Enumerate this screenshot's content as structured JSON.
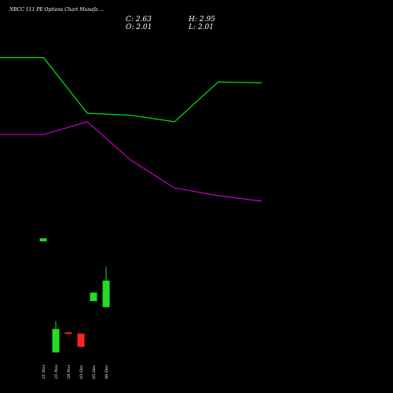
{
  "header": {
    "title": "NBCC 111 PE Options Chart Munafa ...",
    "close_label": "C: 2.63",
    "open_label": "O: 2.01",
    "high_label": "H: 2.95",
    "low_label": "L: 2.01"
  },
  "chart_data": {
    "type": "candlestick",
    "title": "NBCC 111 PE Options Chart Munafa ...",
    "x_tick_labels": [
      "21 Nov",
      "25 Nov",
      "28 Nov",
      "03 Dec",
      "05 Dec",
      "06 Dec"
    ],
    "candles": [
      {
        "date": "21 Nov",
        "open": 3.62,
        "high": 3.62,
        "low": 3.55,
        "close": 3.55,
        "color": "#22dd22"
      },
      {
        "date": "25 Nov",
        "open": 0.95,
        "high": 1.68,
        "low": 0.95,
        "close": 1.5,
        "color": "#22dd22"
      },
      {
        "date": "28 Nov",
        "open": 1.42,
        "high": 1.42,
        "low": 1.39,
        "close": 1.39,
        "color": "#ff2222"
      },
      {
        "date": "03 Dec",
        "open": 1.39,
        "high": 1.39,
        "low": 1.08,
        "close": 1.08,
        "color": "#ff2222"
      },
      {
        "date": "05 Dec",
        "open": 2.15,
        "high": 2.35,
        "low": 2.15,
        "close": 2.35,
        "color": "#22dd22"
      },
      {
        "date": "06 Dec",
        "open": 2.01,
        "high": 2.95,
        "low": 2.01,
        "close": 2.63,
        "color": "#22dd22"
      }
    ],
    "series": [
      {
        "values": [
          7.85,
          7.85,
          6.55,
          6.5,
          6.35,
          7.28,
          7.26
        ],
        "color": "#00ee00"
      },
      {
        "values": [
          6.05,
          6.05,
          6.35,
          5.45,
          4.8,
          4.62,
          4.49
        ],
        "color": "#cc00cc"
      }
    ],
    "series_x": [
      0,
      1,
      2,
      3,
      4,
      5,
      6
    ],
    "ylim": [
      0,
      9.2
    ],
    "background": "#000000",
    "up_color": "#22dd22",
    "down_color": "#ff2222"
  }
}
